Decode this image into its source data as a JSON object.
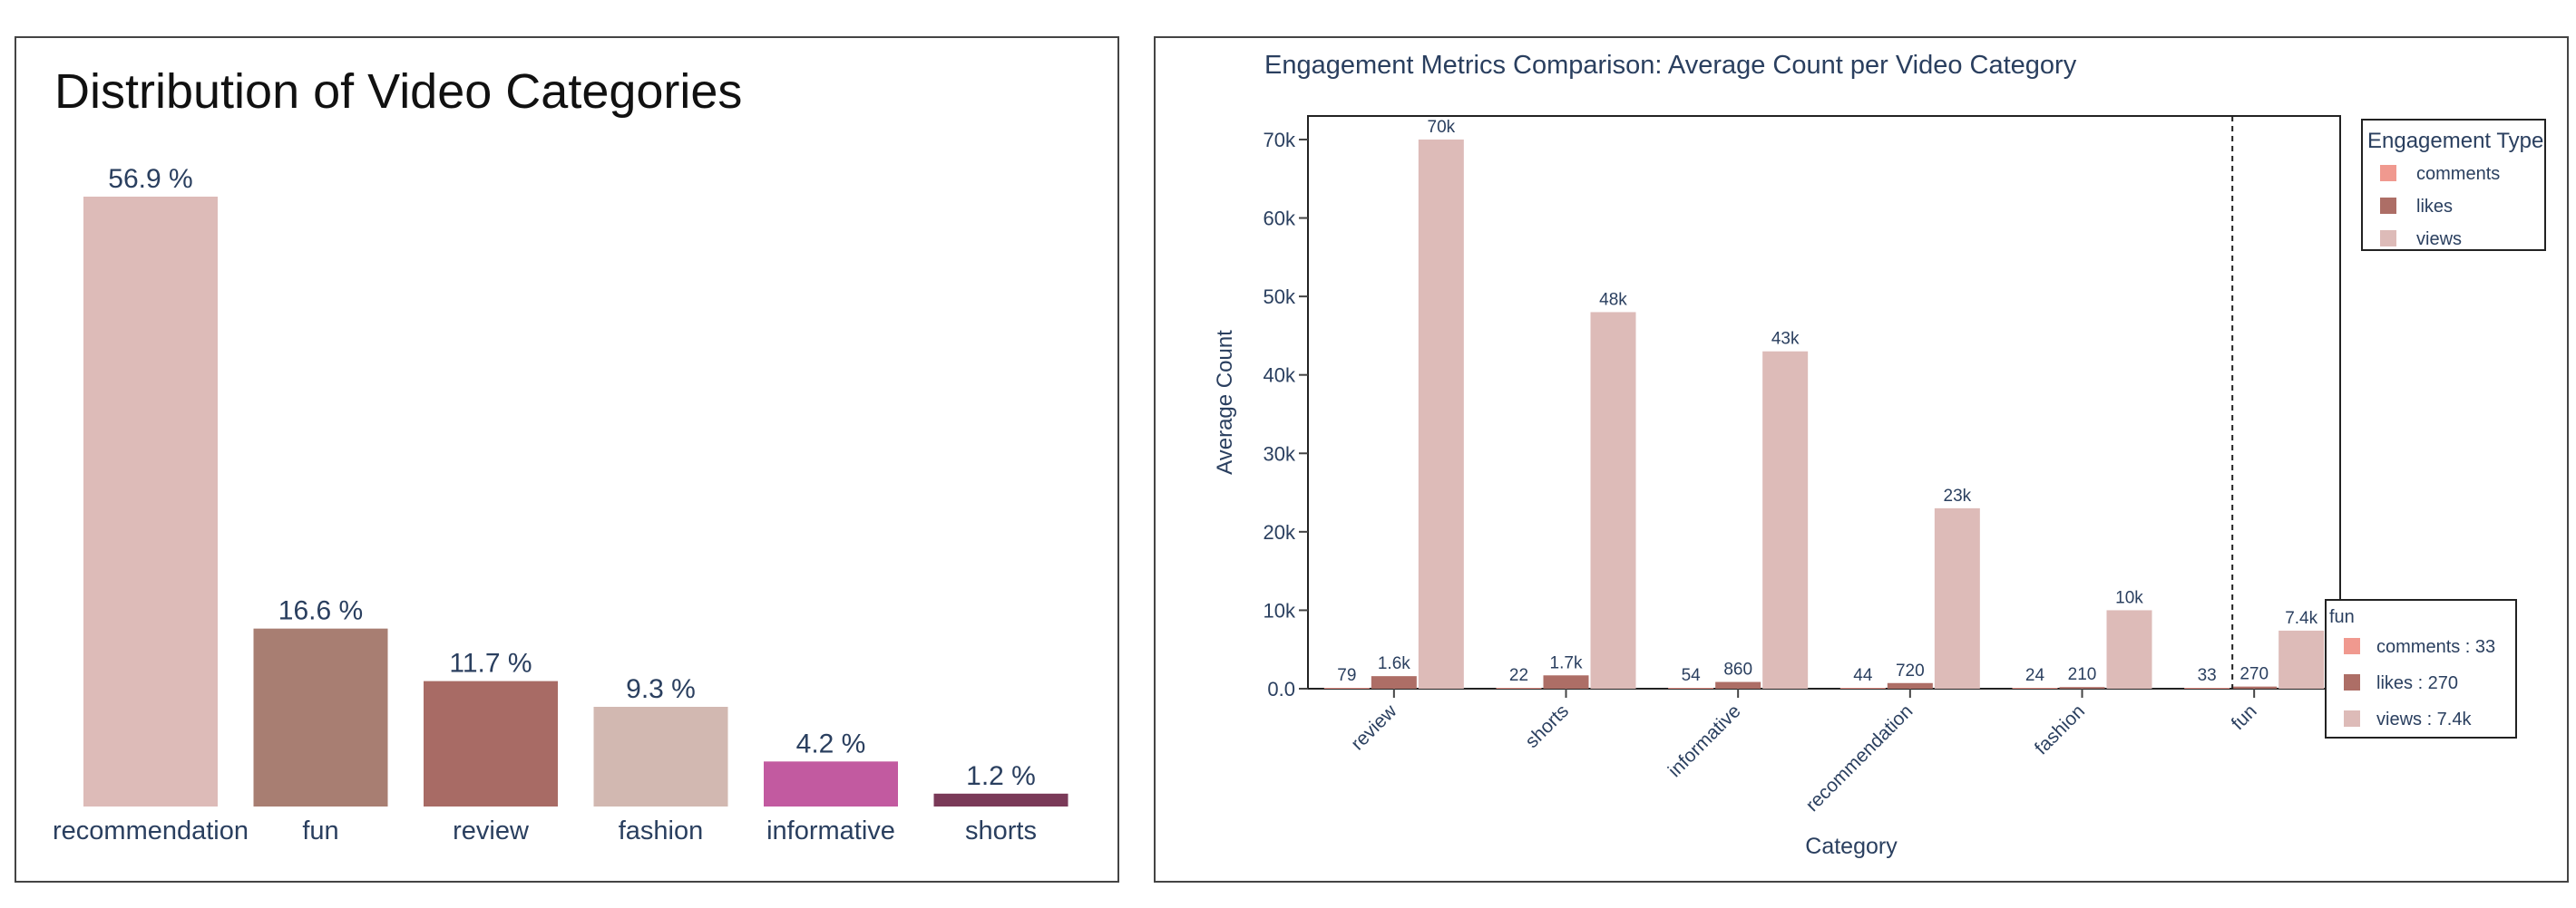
{
  "chart_data": [
    {
      "type": "bar",
      "title": "Distribution of Video Categories",
      "categories": [
        "recommendation",
        "fun",
        "review",
        "fashion",
        "informative",
        "shorts"
      ],
      "values": [
        56.9,
        16.6,
        11.7,
        9.3,
        4.2,
        1.2
      ],
      "value_labels": [
        "56.9 %",
        "16.6 %",
        "11.7 %",
        "9.3 %",
        "4.2 %",
        "1.2 %"
      ],
      "colors": [
        "#ddbbb8",
        "#a87e72",
        "#a86b65",
        "#d2b8b1",
        "#c25aa0",
        "#7a3a58"
      ],
      "xlabel": "",
      "ylabel": "",
      "ylim": [
        0,
        60
      ],
      "grid": false,
      "legend": "none"
    },
    {
      "type": "bar",
      "title": "Engagement Metrics Comparison: Average Count per Video Category",
      "categories": [
        "review",
        "shorts",
        "informative",
        "recommendation",
        "fashion",
        "fun"
      ],
      "xlabel": "Category",
      "ylabel": "Average Count",
      "ylim": [
        0,
        73000
      ],
      "y_ticks": [
        0,
        10000,
        20000,
        30000,
        40000,
        50000,
        60000,
        70000
      ],
      "y_tick_labels": [
        "0.0",
        "10k",
        "20k",
        "30k",
        "40k",
        "50k",
        "60k",
        "70k"
      ],
      "grid": false,
      "legend": "top-right",
      "legend_title": "Engagement Type",
      "series": [
        {
          "name": "comments",
          "color": "#f0998f",
          "values": [
            79,
            22,
            54,
            44,
            24,
            33
          ],
          "labels": [
            "79",
            "22",
            "54",
            "44",
            "24",
            "33"
          ]
        },
        {
          "name": "likes",
          "color": "#ad6e66",
          "values": [
            1600,
            1700,
            860,
            720,
            210,
            270
          ],
          "labels": [
            "1.6k",
            "1.7k",
            "860",
            "720",
            "210",
            "270"
          ]
        },
        {
          "name": "views",
          "color": "#ddbbb8",
          "values": [
            70000,
            48000,
            43000,
            23000,
            10000,
            7400
          ],
          "labels": [
            "70k",
            "48k",
            "43k",
            "23k",
            "10k",
            "7.4k"
          ]
        }
      ],
      "hover": {
        "category": "fun",
        "lines": [
          "comments : 33",
          "likes : 270",
          "views : 7.4k"
        ]
      }
    }
  ]
}
